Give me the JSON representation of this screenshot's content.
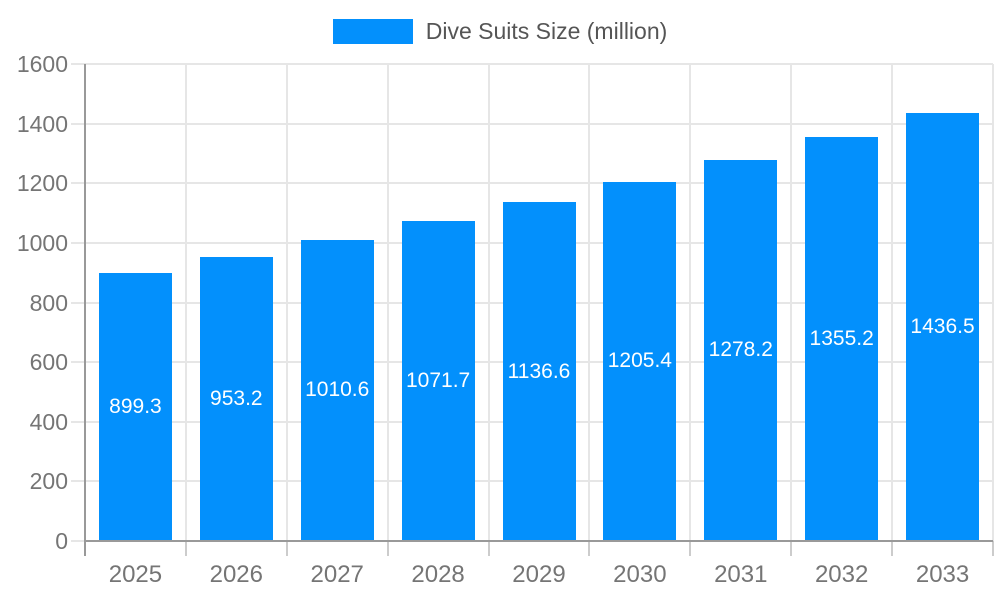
{
  "chart_data": {
    "type": "bar",
    "title": "Dive Suits Size (million)",
    "categories": [
      "2025",
      "2026",
      "2027",
      "2028",
      "2029",
      "2030",
      "2031",
      "2032",
      "2033"
    ],
    "series": [
      {
        "name": "Dive Suits Size (million)",
        "values": [
          899.3,
          953.2,
          1010.6,
          1071.7,
          1136.6,
          1205.4,
          1278.2,
          1355.2,
          1436.5
        ]
      }
    ],
    "data_labels": [
      "899.3",
      "953.2",
      "1010.6",
      "1071.7",
      "1136.6",
      "1205.4",
      "1278.2",
      "1355.2",
      "1436.5"
    ],
    "xlabel": "",
    "ylabel": "",
    "ylim": [
      0,
      1600
    ],
    "ytick_step": 200,
    "ytick_labels": [
      "0",
      "200",
      "400",
      "600",
      "800",
      "1000",
      "1200",
      "1400",
      "1600"
    ],
    "grid": true,
    "legend_position": "top"
  },
  "legend": {
    "label": "Dive Suits Size (million)"
  },
  "colors": {
    "bar": "#0390fc",
    "bar_label": "#ffffff",
    "grid": "#e6e6e6",
    "axis": "#999999",
    "tick": "#cccccc",
    "tick_label": "#757575",
    "legend_text": "#555555",
    "background": "#ffffff"
  }
}
